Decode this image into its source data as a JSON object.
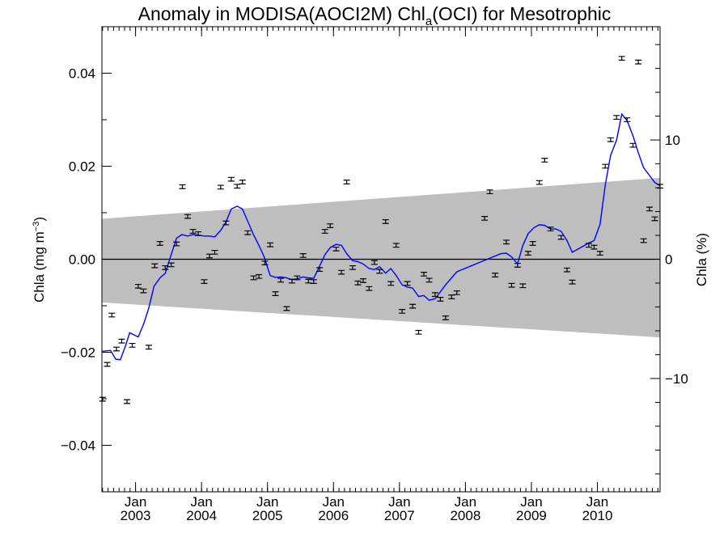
{
  "chart_data": {
    "type": "scatter",
    "title_main": "Anomaly in MODISA(AOCI2M) Chl",
    "title_sub": "a",
    "title_tail": "(OCI) for Mesotrophic",
    "ylabel_left_main": "Chla (mg m",
    "ylabel_left_sup": "−3",
    "ylabel_left_close": ")",
    "ylabel_right": "Chla (%)",
    "xlim": [
      2002.49,
      2010.95
    ],
    "ylim": [
      -0.05,
      0.05
    ],
    "ylim_right": [
      -19.5,
      19.5
    ],
    "x_ticks_major": [
      {
        "x": 2003.0,
        "month_label": "Jan",
        "year_label": "2003"
      },
      {
        "x": 2004.0,
        "month_label": "Jan",
        "year_label": "2004"
      },
      {
        "x": 2005.0,
        "month_label": "Jan",
        "year_label": "2005"
      },
      {
        "x": 2006.0,
        "month_label": "Jan",
        "year_label": "2006"
      },
      {
        "x": 2007.0,
        "month_label": "Jan",
        "year_label": "2007"
      },
      {
        "x": 2008.0,
        "month_label": "Jan",
        "year_label": "2008"
      },
      {
        "x": 2009.0,
        "month_label": "Jan",
        "year_label": "2009"
      },
      {
        "x": 2010.0,
        "month_label": "Jan",
        "year_label": "2010"
      }
    ],
    "y_ticks_left": [
      {
        "v": 0.04,
        "label": "0.04"
      },
      {
        "v": 0.02,
        "label": "0.02"
      },
      {
        "v": 0.0,
        "label": "0.00"
      },
      {
        "v": -0.02,
        "label": "−0.02"
      },
      {
        "v": -0.04,
        "label": "−0.04"
      }
    ],
    "y_ticks_right": [
      {
        "v": 10,
        "label": "10"
      },
      {
        "v": 0,
        "label": "0"
      },
      {
        "v": -10,
        "label": "−10"
      }
    ],
    "zero_line": 0.0,
    "band": {
      "color": "#bebebe",
      "x": [
        2002.49,
        2010.95
      ],
      "upper": [
        0.0087,
        0.0175
      ],
      "lower": [
        -0.0093,
        -0.0168
      ]
    },
    "colors": {
      "points": "#000000",
      "smooth": "#0000ff"
    },
    "error_bar_halfwidth": 0.0004,
    "points": [
      {
        "x": 2002.5,
        "y": -0.0301
      },
      {
        "x": 2002.57,
        "y": -0.0226
      },
      {
        "x": 2002.64,
        "y": -0.012
      },
      {
        "x": 2002.71,
        "y": -0.0193
      },
      {
        "x": 2002.79,
        "y": -0.0176
      },
      {
        "x": 2002.87,
        "y": -0.0306
      },
      {
        "x": 2002.95,
        "y": -0.0185
      },
      {
        "x": 2003.04,
        "y": -0.0058
      },
      {
        "x": 2003.12,
        "y": -0.0068
      },
      {
        "x": 2003.2,
        "y": -0.0189
      },
      {
        "x": 2003.29,
        "y": -0.0014
      },
      {
        "x": 2003.37,
        "y": 0.0034
      },
      {
        "x": 2003.45,
        "y": -0.0018
      },
      {
        "x": 2003.54,
        "y": -0.0012
      },
      {
        "x": 2003.62,
        "y": 0.0033
      },
      {
        "x": 2003.71,
        "y": 0.0156
      },
      {
        "x": 2003.79,
        "y": 0.0092
      },
      {
        "x": 2003.87,
        "y": 0.006
      },
      {
        "x": 2003.95,
        "y": 0.0055
      },
      {
        "x": 2004.04,
        "y": -0.0048
      },
      {
        "x": 2004.12,
        "y": 0.0007
      },
      {
        "x": 2004.2,
        "y": 0.0015
      },
      {
        "x": 2004.29,
        "y": 0.0155
      },
      {
        "x": 2004.37,
        "y": 0.0078
      },
      {
        "x": 2004.45,
        "y": 0.0172
      },
      {
        "x": 2004.54,
        "y": 0.0157
      },
      {
        "x": 2004.62,
        "y": 0.0166
      },
      {
        "x": 2004.7,
        "y": 0.0057
      },
      {
        "x": 2004.79,
        "y": -0.004
      },
      {
        "x": 2004.87,
        "y": -0.0037
      },
      {
        "x": 2004.96,
        "y": -0.0008
      },
      {
        "x": 2005.04,
        "y": 0.0031
      },
      {
        "x": 2005.12,
        "y": -0.0074
      },
      {
        "x": 2005.2,
        "y": -0.0045
      },
      {
        "x": 2005.29,
        "y": -0.0106
      },
      {
        "x": 2005.37,
        "y": -0.0047
      },
      {
        "x": 2005.45,
        "y": -0.004
      },
      {
        "x": 2005.54,
        "y": 0.0008
      },
      {
        "x": 2005.62,
        "y": -0.0047
      },
      {
        "x": 2005.7,
        "y": -0.0048
      },
      {
        "x": 2005.79,
        "y": -0.0022
      },
      {
        "x": 2005.87,
        "y": 0.006
      },
      {
        "x": 2005.95,
        "y": 0.0072
      },
      {
        "x": 2006.04,
        "y": 0.0022
      },
      {
        "x": 2006.12,
        "y": -0.0028
      },
      {
        "x": 2006.2,
        "y": 0.0166
      },
      {
        "x": 2006.29,
        "y": -0.0018
      },
      {
        "x": 2006.37,
        "y": -0.0051
      },
      {
        "x": 2006.45,
        "y": -0.0046
      },
      {
        "x": 2006.54,
        "y": -0.0063
      },
      {
        "x": 2006.62,
        "y": -0.0007
      },
      {
        "x": 2006.7,
        "y": -0.0026
      },
      {
        "x": 2006.79,
        "y": 0.0081
      },
      {
        "x": 2006.87,
        "y": -0.0052
      },
      {
        "x": 2006.95,
        "y": 0.003
      },
      {
        "x": 2007.04,
        "y": -0.0112
      },
      {
        "x": 2007.12,
        "y": -0.0052
      },
      {
        "x": 2007.2,
        "y": -0.0101
      },
      {
        "x": 2007.29,
        "y": -0.0157
      },
      {
        "x": 2007.37,
        "y": -0.0032
      },
      {
        "x": 2007.45,
        "y": -0.0045
      },
      {
        "x": 2007.54,
        "y": -0.0076
      },
      {
        "x": 2007.62,
        "y": -0.0086
      },
      {
        "x": 2007.7,
        "y": -0.0126
      },
      {
        "x": 2007.79,
        "y": -0.0081
      },
      {
        "x": 2007.87,
        "y": -0.0072
      },
      {
        "x": 2008.29,
        "y": 0.0088
      },
      {
        "x": 2008.37,
        "y": 0.0145
      },
      {
        "x": 2008.45,
        "y": -0.0034
      },
      {
        "x": 2008.62,
        "y": 0.0037
      },
      {
        "x": 2008.7,
        "y": -0.0056
      },
      {
        "x": 2008.79,
        "y": -0.0013
      },
      {
        "x": 2008.87,
        "y": -0.0057
      },
      {
        "x": 2008.95,
        "y": 0.0013
      },
      {
        "x": 2009.02,
        "y": 0.0034
      },
      {
        "x": 2009.12,
        "y": 0.0165
      },
      {
        "x": 2009.2,
        "y": 0.0213
      },
      {
        "x": 2009.29,
        "y": 0.0065
      },
      {
        "x": 2009.45,
        "y": 0.0047
      },
      {
        "x": 2009.54,
        "y": -0.0023
      },
      {
        "x": 2009.62,
        "y": -0.0049
      },
      {
        "x": 2009.87,
        "y": 0.003
      },
      {
        "x": 2009.95,
        "y": 0.0026
      },
      {
        "x": 2010.04,
        "y": 0.0013
      },
      {
        "x": 2010.12,
        "y": 0.02
      },
      {
        "x": 2010.2,
        "y": 0.0257
      },
      {
        "x": 2010.29,
        "y": 0.0305
      },
      {
        "x": 2010.37,
        "y": 0.0432
      },
      {
        "x": 2010.45,
        "y": 0.03
      },
      {
        "x": 2010.54,
        "y": 0.0245
      },
      {
        "x": 2010.62,
        "y": 0.0424
      },
      {
        "x": 2010.7,
        "y": 0.004
      },
      {
        "x": 2010.79,
        "y": 0.0108
      },
      {
        "x": 2010.87,
        "y": 0.0087
      },
      {
        "x": 2010.95,
        "y": 0.0157
      }
    ],
    "smooth": {
      "x": [
        2002.49,
        2002.62,
        2002.7,
        2002.77,
        2002.85,
        2002.91,
        2003.04,
        2003.12,
        2003.2,
        2003.28,
        2003.37,
        2003.45,
        2003.54,
        2003.62,
        2003.7,
        2003.79,
        2003.87,
        2003.95,
        2004.04,
        2004.12,
        2004.2,
        2004.29,
        2004.37,
        2004.45,
        2004.54,
        2004.62,
        2004.7,
        2004.79,
        2004.87,
        2004.95,
        2005.04,
        2005.12,
        2005.2,
        2005.29,
        2005.37,
        2005.45,
        2005.54,
        2005.62,
        2005.7,
        2005.79,
        2005.87,
        2005.95,
        2006.04,
        2006.12,
        2006.2,
        2006.29,
        2006.37,
        2006.45,
        2006.54,
        2006.62,
        2006.7,
        2006.79,
        2006.87,
        2006.95,
        2007.04,
        2007.12,
        2007.2,
        2007.29,
        2007.37,
        2007.45,
        2007.54,
        2007.62,
        2007.7,
        2007.79,
        2007.87,
        2008.45,
        2008.54,
        2008.62,
        2008.7,
        2008.79,
        2008.87,
        2008.95,
        2009.04,
        2009.12,
        2009.2,
        2009.29,
        2009.37,
        2009.45,
        2009.54,
        2009.62,
        2009.87,
        2009.95,
        2010.04,
        2010.12,
        2010.2,
        2010.29,
        2010.37,
        2010.45,
        2010.54,
        2010.62,
        2010.7,
        2010.79,
        2010.87,
        2010.95
      ],
      "y": [
        -0.0198,
        -0.0196,
        -0.0215,
        -0.0216,
        -0.0185,
        -0.0158,
        -0.0167,
        -0.014,
        -0.0105,
        -0.0058,
        -0.004,
        -0.003,
        0.001,
        0.0045,
        0.0053,
        0.005,
        0.0053,
        0.0052,
        0.005,
        0.005,
        0.0048,
        0.0062,
        0.008,
        0.0108,
        0.0114,
        0.0108,
        0.0082,
        0.0052,
        0.003,
        0.0005,
        -0.0035,
        -0.0039,
        -0.0038,
        -0.004,
        -0.0044,
        -0.0042,
        -0.0038,
        -0.004,
        -0.0041,
        -0.0015,
        0.001,
        0.0025,
        0.0032,
        0.003,
        0.0012,
        -0.0003,
        -0.0005,
        -0.001,
        -0.002,
        -0.0022,
        -0.0016,
        -0.003,
        -0.002,
        -0.0035,
        -0.0055,
        -0.006,
        -0.0062,
        -0.008,
        -0.0078,
        -0.0088,
        -0.0085,
        -0.007,
        -0.0055,
        -0.004,
        -0.0027,
        0.0007,
        0.0012,
        0.0013,
        0.0005,
        -0.001,
        0.003,
        0.0055,
        0.0068,
        0.0074,
        0.0073,
        0.0065,
        0.0065,
        0.006,
        0.004,
        0.0015,
        0.0035,
        0.004,
        0.0075,
        0.016,
        0.0223,
        0.0256,
        0.0312,
        0.0298,
        0.0265,
        0.0229,
        0.0197,
        0.018,
        0.0165,
        0.0158
      ]
    }
  }
}
